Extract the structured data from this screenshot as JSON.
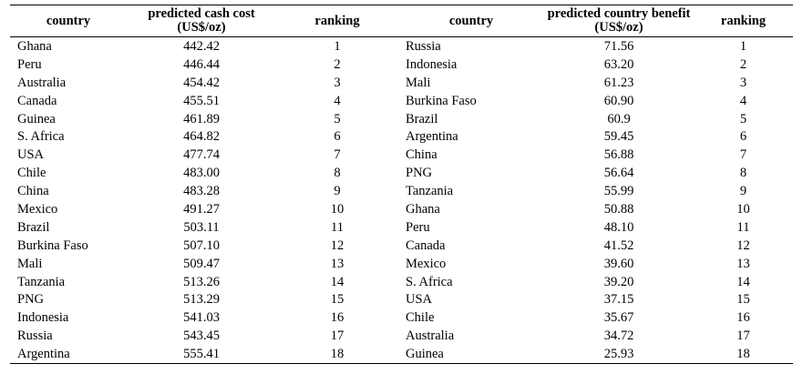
{
  "headers": {
    "country_left": "country",
    "cash_cost": "predicted cash cost (US$/oz)",
    "ranking_left": "ranking",
    "country_right": "country",
    "benefit": "predicted country benefit (US$/oz)",
    "ranking_right": "ranking"
  },
  "rows": [
    {
      "c1": "Ghana",
      "c2": "442.42",
      "c3": "1",
      "c4": "Russia",
      "c5": "71.56",
      "c6": "1"
    },
    {
      "c1": "Peru",
      "c2": "446.44",
      "c3": "2",
      "c4": "Indonesia",
      "c5": "63.20",
      "c6": "2"
    },
    {
      "c1": "Australia",
      "c2": "454.42",
      "c3": "3",
      "c4": "Mali",
      "c5": "61.23",
      "c6": "3"
    },
    {
      "c1": "Canada",
      "c2": "455.51",
      "c3": "4",
      "c4": "Burkina Faso",
      "c5": "60.90",
      "c6": "4"
    },
    {
      "c1": "Guinea",
      "c2": "461.89",
      "c3": "5",
      "c4": "Brazil",
      "c5": "60.9",
      "c6": "5"
    },
    {
      "c1": "S. Africa",
      "c2": "464.82",
      "c3": "6",
      "c4": "Argentina",
      "c5": "59.45",
      "c6": "6"
    },
    {
      "c1": "USA",
      "c2": "477.74",
      "c3": "7",
      "c4": "China",
      "c5": "56.88",
      "c6": "7"
    },
    {
      "c1": "Chile",
      "c2": "483.00",
      "c3": "8",
      "c4": "PNG",
      "c5": "56.64",
      "c6": "8"
    },
    {
      "c1": "China",
      "c2": "483.28",
      "c3": "9",
      "c4": "Tanzania",
      "c5": "55.99",
      "c6": "9"
    },
    {
      "c1": "Mexico",
      "c2": "491.27",
      "c3": "10",
      "c4": "Ghana",
      "c5": "50.88",
      "c6": "10"
    },
    {
      "c1": "Brazil",
      "c2": "503.11",
      "c3": "11",
      "c4": "Peru",
      "c5": "48.10",
      "c6": "11"
    },
    {
      "c1": "Burkina Faso",
      "c2": "507.10",
      "c3": "12",
      "c4": "Canada",
      "c5": "41.52",
      "c6": "12"
    },
    {
      "c1": "Mali",
      "c2": "509.47",
      "c3": "13",
      "c4": "Mexico",
      "c5": "39.60",
      "c6": "13"
    },
    {
      "c1": "Tanzania",
      "c2": "513.26",
      "c3": "14",
      "c4": "S. Africa",
      "c5": "39.20",
      "c6": "14"
    },
    {
      "c1": "PNG",
      "c2": "513.29",
      "c3": "15",
      "c4": "USA",
      "c5": "37.15",
      "c6": "15"
    },
    {
      "c1": "Indonesia",
      "c2": "541.03",
      "c3": "16",
      "c4": "Chile",
      "c5": "35.67",
      "c6": "16"
    },
    {
      "c1": "Russia",
      "c2": "543.45",
      "c3": "17",
      "c4": "Australia",
      "c5": "34.72",
      "c6": "17"
    },
    {
      "c1": "Argentina",
      "c2": "555.41",
      "c3": "18",
      "c4": "Guinea",
      "c5": "25.93",
      "c6": "18"
    }
  ]
}
